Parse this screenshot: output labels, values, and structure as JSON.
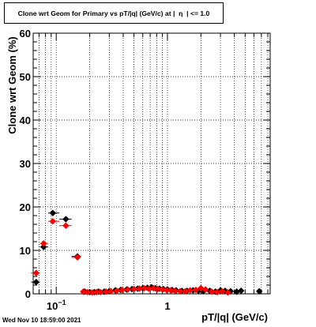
{
  "title": "Clone wrt Geom for Primary vs pT/|q| (GeV/c) at |  η  | <= 1.0",
  "timestamp": "Wed Nov 10 18:59:00 2021",
  "chart_data": {
    "type": "scatter",
    "title": "Clone wrt Geom for Primary vs pT/|q| (GeV/c) at |  η  | <= 1.0",
    "xlabel": "pT/|q| (GeV/c)",
    "ylabel": "Clone wrt Geom (%)",
    "xscale": "log",
    "xlim": [
      0.062,
      8.4
    ],
    "ylim": [
      0,
      60
    ],
    "xticks": [
      {
        "value": 0.1,
        "base": "10",
        "exp": "−1"
      },
      {
        "value": 1,
        "label": "1"
      }
    ],
    "yticks": [
      0,
      10,
      20,
      30,
      40,
      50,
      60
    ],
    "grid": true,
    "colors": {
      "series_1": "#000000",
      "series_2": "#ff0000"
    },
    "series": [
      {
        "marker": "black-diamond",
        "points": [
          {
            "x": 0.066,
            "y": 2.7
          },
          {
            "x": 0.077,
            "y": 10.8
          },
          {
            "x": 0.093,
            "y": 18.6
          },
          {
            "x": 0.122,
            "y": 17.2
          },
          {
            "x": 0.155,
            "y": 8.6
          },
          {
            "x": 0.18,
            "y": 0.5
          },
          {
            "x": 0.2,
            "y": 0.4
          },
          {
            "x": 0.22,
            "y": 0.4
          },
          {
            "x": 0.24,
            "y": 0.5
          },
          {
            "x": 0.27,
            "y": 0.5
          },
          {
            "x": 0.3,
            "y": 0.6
          },
          {
            "x": 0.34,
            "y": 0.8
          },
          {
            "x": 0.38,
            "y": 0.9
          },
          {
            "x": 0.43,
            "y": 1.0
          },
          {
            "x": 0.48,
            "y": 1.1
          },
          {
            "x": 0.54,
            "y": 1.2
          },
          {
            "x": 0.6,
            "y": 1.3
          },
          {
            "x": 0.66,
            "y": 1.4
          },
          {
            "x": 0.72,
            "y": 1.5
          },
          {
            "x": 0.78,
            "y": 1.3
          },
          {
            "x": 0.85,
            "y": 1.2
          },
          {
            "x": 0.92,
            "y": 1.1
          },
          {
            "x": 1.0,
            "y": 1.0
          },
          {
            "x": 1.1,
            "y": 0.9
          },
          {
            "x": 1.2,
            "y": 0.8
          },
          {
            "x": 1.35,
            "y": 0.7
          },
          {
            "x": 1.5,
            "y": 0.7
          },
          {
            "x": 1.7,
            "y": 0.8
          },
          {
            "x": 1.9,
            "y": 0.7
          },
          {
            "x": 2.1,
            "y": 0.6
          },
          {
            "x": 2.4,
            "y": 0.7
          },
          {
            "x": 2.7,
            "y": 0.5
          },
          {
            "x": 3.0,
            "y": 0.8
          },
          {
            "x": 3.3,
            "y": 0.7
          },
          {
            "x": 3.7,
            "y": 0.6
          },
          {
            "x": 4.2,
            "y": 0.5
          },
          {
            "x": 4.6,
            "y": 0.7
          },
          {
            "x": 6.7,
            "y": 0.6
          }
        ]
      },
      {
        "marker": "red-diamond",
        "points": [
          {
            "x": 0.066,
            "y": 4.8
          },
          {
            "x": 0.077,
            "y": 11.6
          },
          {
            "x": 0.093,
            "y": 16.7
          },
          {
            "x": 0.122,
            "y": 15.7
          },
          {
            "x": 0.155,
            "y": 8.4
          },
          {
            "x": 0.175,
            "y": 0.5
          },
          {
            "x": 0.19,
            "y": 0.4
          },
          {
            "x": 0.21,
            "y": 0.3
          },
          {
            "x": 0.23,
            "y": 0.4
          },
          {
            "x": 0.25,
            "y": 0.4
          },
          {
            "x": 0.28,
            "y": 0.5
          },
          {
            "x": 0.31,
            "y": 0.6
          },
          {
            "x": 0.35,
            "y": 0.7
          },
          {
            "x": 0.39,
            "y": 0.9
          },
          {
            "x": 0.44,
            "y": 1.0
          },
          {
            "x": 0.5,
            "y": 1.1
          },
          {
            "x": 0.56,
            "y": 1.2
          },
          {
            "x": 0.62,
            "y": 1.3
          },
          {
            "x": 0.68,
            "y": 1.2
          },
          {
            "x": 0.75,
            "y": 1.3
          },
          {
            "x": 0.82,
            "y": 1.1
          },
          {
            "x": 0.9,
            "y": 1.0
          },
          {
            "x": 0.98,
            "y": 0.9
          },
          {
            "x": 1.07,
            "y": 0.8
          },
          {
            "x": 1.17,
            "y": 0.7
          },
          {
            "x": 1.3,
            "y": 0.6
          },
          {
            "x": 1.45,
            "y": 0.6
          },
          {
            "x": 1.6,
            "y": 0.8
          },
          {
            "x": 1.8,
            "y": 0.9
          },
          {
            "x": 2.0,
            "y": 1.3
          },
          {
            "x": 2.2,
            "y": 1.0
          },
          {
            "x": 2.5,
            "y": 0.5
          },
          {
            "x": 2.8,
            "y": 0.4
          },
          {
            "x": 3.1,
            "y": 0.6
          },
          {
            "x": 3.5,
            "y": 0.3
          }
        ]
      }
    ]
  }
}
